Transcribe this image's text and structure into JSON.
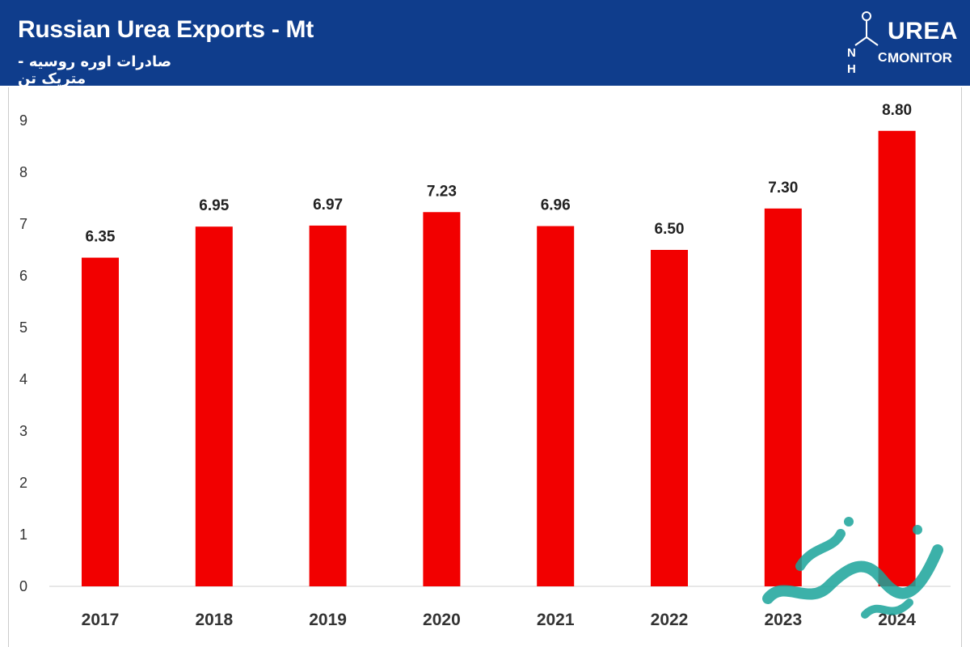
{
  "header": {
    "title": "Russian Urea Exports - Mt",
    "subtitle": "صادرات اوره روسیه - متریک تن",
    "logo_word": "UREA",
    "logo_sub": "MONITOR",
    "logo_icon": "urea-molecule-icon"
  },
  "colors": {
    "header_bg": "#0f3d8c",
    "bar": "#f20000",
    "axis_text": "#333333",
    "watermark": "#1aa39a"
  },
  "chart_data": {
    "type": "bar",
    "title": "Russian Urea Exports - Mt",
    "categories": [
      "2017",
      "2018",
      "2019",
      "2020",
      "2021",
      "2022",
      "2023",
      "2024"
    ],
    "values": [
      6.35,
      6.95,
      6.97,
      7.23,
      6.96,
      6.5,
      7.3,
      8.8
    ],
    "value_labels": [
      "6.35",
      "6.95",
      "6.97",
      "7.23",
      "6.96",
      "6.50",
      "7.30",
      "8.80"
    ],
    "yticks": [
      "0",
      "1",
      "2",
      "3",
      "4",
      "5",
      "6",
      "7",
      "8",
      "9"
    ],
    "ylim": [
      0,
      9
    ],
    "xlabel": "",
    "ylabel": "",
    "grid": false,
    "legend": false
  }
}
